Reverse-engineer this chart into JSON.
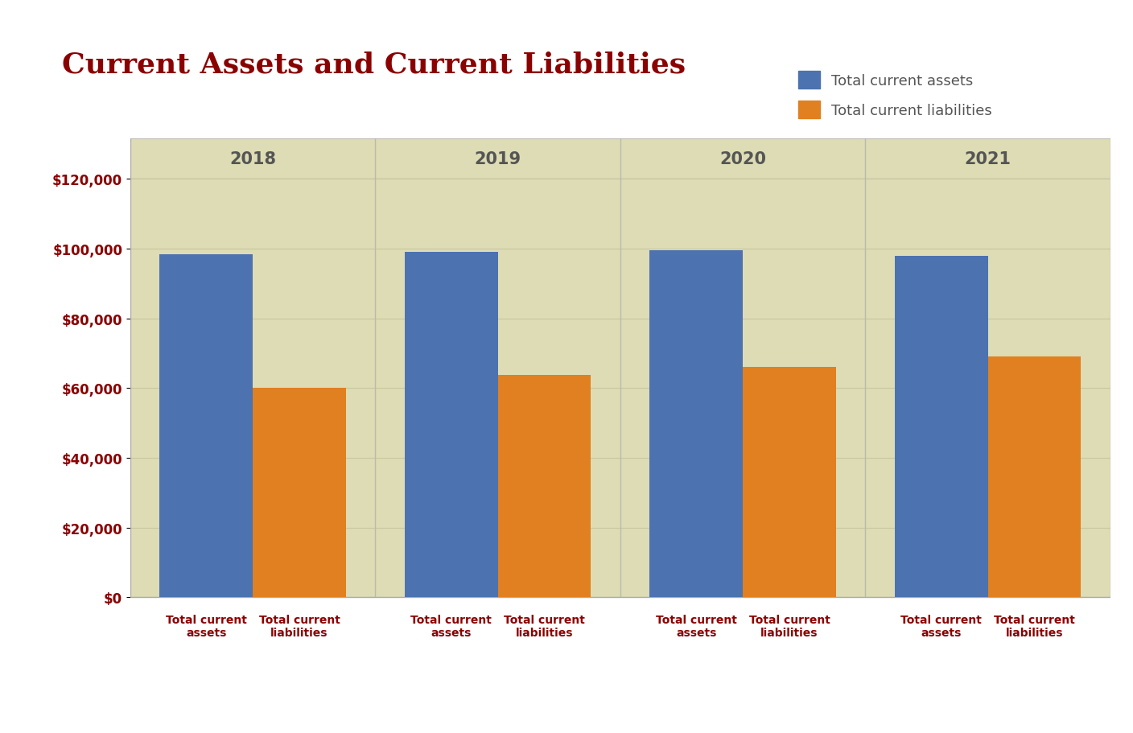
{
  "title": "Current Assets and Current Liabilities",
  "title_color": "#8B0000",
  "title_fontsize": 26,
  "plot_bg_color": "#dddcb4",
  "outer_bg_color": "#ffffff",
  "years": [
    "2018",
    "2019",
    "2020",
    "2021"
  ],
  "assets": [
    98500,
    99200,
    99500,
    98000
  ],
  "liabilities": [
    60000,
    63800,
    66200,
    69000
  ],
  "asset_color": "#4c72b0",
  "liability_color": "#e08020",
  "ylim": [
    0,
    120000
  ],
  "yticks": [
    0,
    20000,
    40000,
    60000,
    80000,
    100000,
    120000
  ],
  "ytick_labels": [
    "$0",
    "$20,000",
    "$40,000",
    "$60,000",
    "$80,000",
    "$100,000",
    "$120,000"
  ],
  "ytick_color": "#8B0000",
  "year_label_color": "#555555",
  "year_label_fontsize": 15,
  "bar_width": 0.38,
  "grid_color": "#c8c7a0",
  "grid_linewidth": 0.8,
  "legend_asset": "Total current assets",
  "legend_liability": "Total current liabilities",
  "legend_label_color": "#555555",
  "legend_fontsize": 13,
  "xlabel_asset": "Total current\nassets",
  "xlabel_liability": "Total current\nliabilities",
  "xlabel_color": "#8B0000",
  "xlabel_fontsize": 10,
  "divider_color": "#bbbbaa",
  "border_color": "#aaaaaa"
}
